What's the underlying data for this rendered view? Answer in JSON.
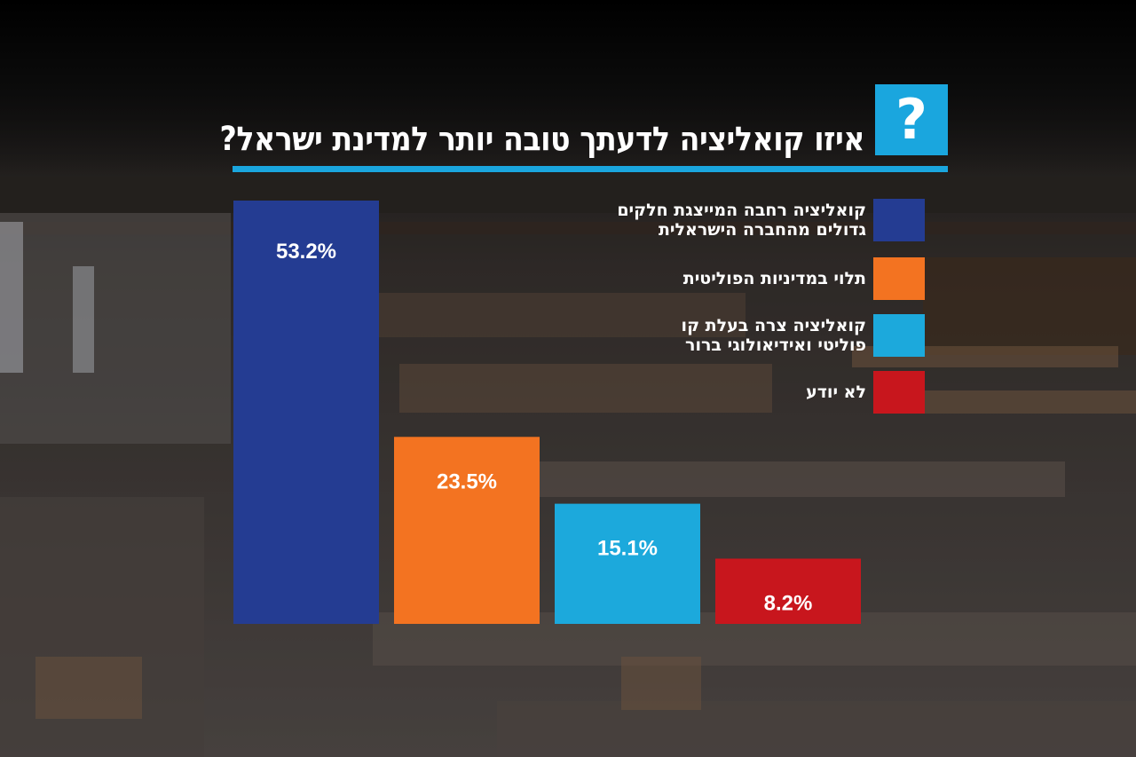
{
  "question_icon": "?",
  "title": "איזו קואליציה לדעתך טובה יותר למדינת ישראל?",
  "colors": {
    "accent": "#1aa6de",
    "bar_blue": "#243c92",
    "bar_orange": "#f37321",
    "bar_cyan": "#1ca9dc",
    "bar_red": "#c8161d"
  },
  "chart_data": {
    "type": "bar",
    "title": "איזו קואליציה לדעתך טובה יותר למדינת ישראל?",
    "categories": [
      "קואליציה רחבה המייצגת חלקים גדולים מהחברה הישראלית",
      "תלוי במדיניות הפוליטית",
      "קואליציה צרה בעלת קו פוליטי ואידיאולוגי ברור",
      "לא יודע"
    ],
    "values": [
      53.2,
      23.5,
      15.1,
      8.2
    ],
    "value_labels": [
      "53.2%",
      "23.5%",
      "15.1%",
      "8.2%"
    ],
    "unit": "%",
    "grid": false,
    "legend_position": "right"
  },
  "legend": [
    {
      "lines": [
        "קואליציה רחבה המייצגת חלקים",
        "גדולים מהחברה הישראלית"
      ],
      "color": "#243c92"
    },
    {
      "lines": [
        "תלוי במדיניות הפוליטית"
      ],
      "color": "#f37321"
    },
    {
      "lines": [
        "קואליציה צרה בעלת קו",
        "פוליטי ואידיאולוגי ברור"
      ],
      "color": "#1ca9dc"
    },
    {
      "lines": [
        "לא יודע"
      ],
      "color": "#c8161d"
    }
  ]
}
